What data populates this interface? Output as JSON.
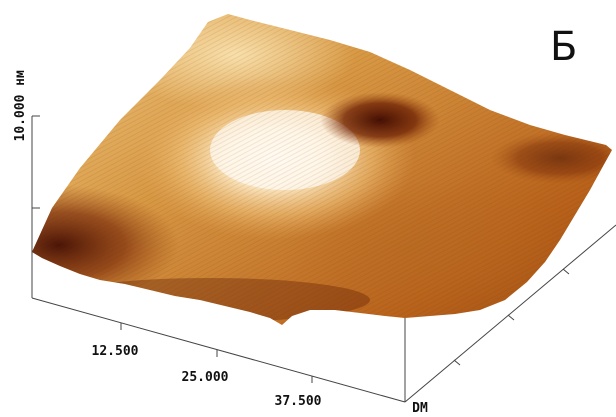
{
  "panel_label": "Б",
  "z_axis": {
    "unit": "нм",
    "tick_value": "10.000"
  },
  "x_axis": {
    "ticks": [
      "12.500",
      "25.000",
      "37.500"
    ],
    "unit": "DM"
  },
  "colors": {
    "dark": "#3a0a00",
    "mid": "#b96318",
    "light": "#f2c777",
    "highlight": "#fff7e6"
  }
}
